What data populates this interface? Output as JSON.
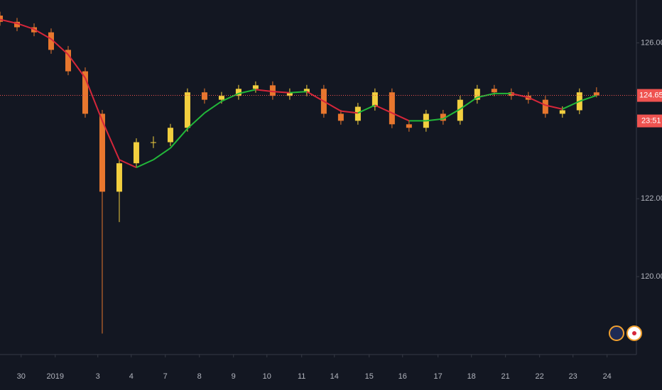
{
  "chart_data": {
    "type": "candlestick",
    "x": [
      0,
      0.5,
      1,
      1.5,
      2,
      2.5,
      3,
      3.5,
      4,
      4.5,
      5,
      5.5,
      6,
      6.5,
      7,
      7.5,
      8,
      8.5,
      9,
      9.5,
      10,
      10.5,
      11,
      11.5,
      12,
      12.5,
      13,
      13.5,
      14,
      14.5,
      15,
      15.5,
      16,
      16.5,
      17,
      17.5
    ],
    "open": [
      126.7,
      126.54,
      126.4,
      126.27,
      125.82,
      125.27,
      124.18,
      122.18,
      122.91,
      123.45,
      123.45,
      123.82,
      124.73,
      124.54,
      124.64,
      124.82,
      124.91,
      124.64,
      124.73,
      124.82,
      124.18,
      124.0,
      124.36,
      124.73,
      123.91,
      123.82,
      124.18,
      124.0,
      124.54,
      124.82,
      124.73,
      124.64,
      124.54,
      124.18,
      124.27,
      124.73
    ],
    "high": [
      126.8,
      126.64,
      126.5,
      126.37,
      125.92,
      125.37,
      124.28,
      123.01,
      123.55,
      123.6,
      123.92,
      124.83,
      124.83,
      124.74,
      124.92,
      125.01,
      125.01,
      124.83,
      124.92,
      124.92,
      124.28,
      124.46,
      124.83,
      124.83,
      124.01,
      124.28,
      124.28,
      124.64,
      124.92,
      124.92,
      124.83,
      124.74,
      124.64,
      124.37,
      124.83,
      124.86
    ],
    "low": [
      126.44,
      126.3,
      126.17,
      125.72,
      125.17,
      124.08,
      118.54,
      121.4,
      122.81,
      123.3,
      123.35,
      123.72,
      124.44,
      124.44,
      124.54,
      124.72,
      124.54,
      124.54,
      124.63,
      124.08,
      123.9,
      123.9,
      124.26,
      123.81,
      123.72,
      123.72,
      123.9,
      123.9,
      124.44,
      124.63,
      124.54,
      124.44,
      124.08,
      124.08,
      124.17,
      124.6
    ],
    "close": [
      126.54,
      126.4,
      126.27,
      125.82,
      125.27,
      124.18,
      122.18,
      122.91,
      123.45,
      123.45,
      123.82,
      124.73,
      124.54,
      124.64,
      124.82,
      124.91,
      124.64,
      124.73,
      124.82,
      124.18,
      124.0,
      124.36,
      124.73,
      123.91,
      123.82,
      124.18,
      124.0,
      124.54,
      124.82,
      124.73,
      124.64,
      124.54,
      124.18,
      124.27,
      124.73,
      124.651
    ],
    "up_color": "#f2cf3f",
    "down_color": "#e8772e",
    "ma": {
      "values": [
        126.6,
        126.5,
        126.35,
        126.1,
        125.7,
        125.1,
        124.0,
        123.0,
        122.8,
        123.0,
        123.3,
        123.8,
        124.2,
        124.5,
        124.7,
        124.8,
        124.75,
        124.72,
        124.75,
        124.5,
        124.25,
        124.2,
        124.4,
        124.2,
        124.0,
        124.0,
        124.05,
        124.3,
        124.6,
        124.7,
        124.7,
        124.6,
        124.4,
        124.3,
        124.5,
        124.65
      ],
      "rise_color": "#22b83a",
      "fall_color": "#d6263a"
    },
    "xlim": [
      0,
      18.65
    ],
    "ylim": [
      118.0,
      127.1
    ],
    "yticks": [
      {
        "value": 120,
        "label": "120.000"
      },
      {
        "value": 122,
        "label": "122.000"
      },
      {
        "value": 124,
        "label": "124.000"
      },
      {
        "value": 126,
        "label": "126.000"
      }
    ],
    "xticks": [
      {
        "value": 0.62,
        "label": "30"
      },
      {
        "value": 1.62,
        "label": "2019"
      },
      {
        "value": 2.87,
        "label": "3"
      },
      {
        "value": 3.85,
        "label": "4"
      },
      {
        "value": 4.85,
        "label": "7"
      },
      {
        "value": 5.85,
        "label": "8"
      },
      {
        "value": 6.85,
        "label": "9"
      },
      {
        "value": 7.83,
        "label": "10"
      },
      {
        "value": 8.85,
        "label": "11"
      },
      {
        "value": 9.81,
        "label": "14"
      },
      {
        "value": 10.83,
        "label": "15"
      },
      {
        "value": 11.81,
        "label": "16"
      },
      {
        "value": 12.85,
        "label": "17"
      },
      {
        "value": 13.83,
        "label": "18"
      },
      {
        "value": 14.83,
        "label": "21"
      },
      {
        "value": 15.83,
        "label": "22"
      },
      {
        "value": 16.81,
        "label": "23"
      },
      {
        "value": 17.81,
        "label": "24"
      }
    ],
    "current_price": 124.651,
    "price_color": "#ef5350",
    "countdown": "23:51"
  }
}
